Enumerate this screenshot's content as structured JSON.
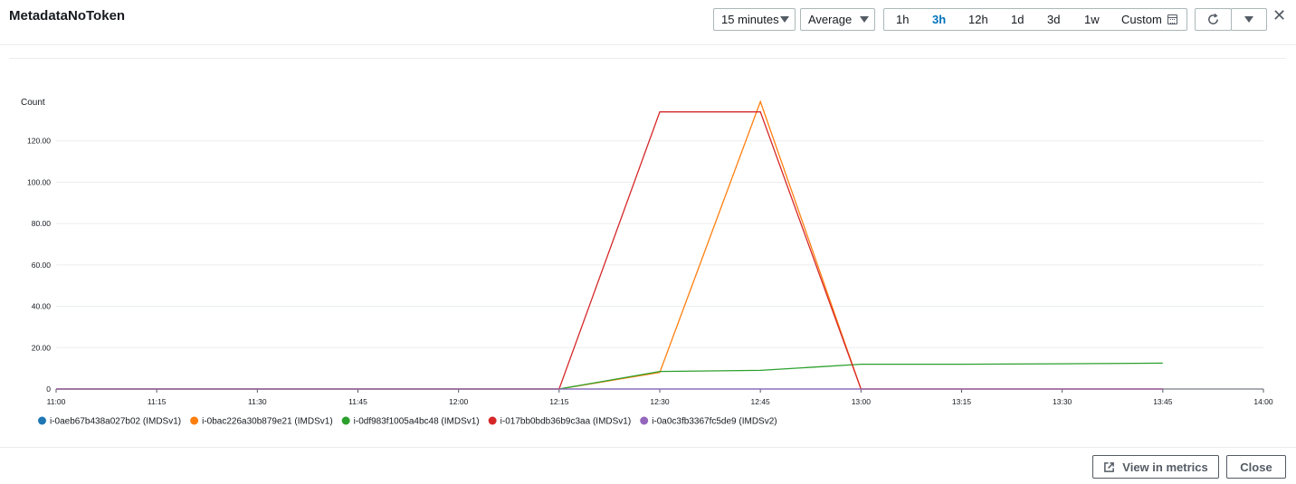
{
  "header": {
    "title": "MetadataNoToken",
    "period": "15 minutes",
    "statistic": "Average",
    "ranges": [
      "1h",
      "3h",
      "12h",
      "1d",
      "3d",
      "1w",
      "Custom"
    ],
    "active_range": "3h",
    "icons": {
      "period": "caret-down-icon",
      "refresh": "refresh-icon",
      "more": "caret-down-icon",
      "close": "close-icon",
      "calendar": "calendar-icon"
    }
  },
  "footer": {
    "view_label": "View in metrics",
    "close_label": "Close",
    "view_icon": "external-link-icon"
  },
  "chart_data": {
    "type": "line",
    "ylabel": "Count",
    "xlabel": "",
    "x": [
      "11:00",
      "11:15",
      "11:30",
      "11:45",
      "12:00",
      "12:15",
      "12:30",
      "12:45",
      "13:00",
      "13:15",
      "13:30",
      "13:45",
      "14:00"
    ],
    "yticks": [
      "0",
      "20.00",
      "40.00",
      "60.00",
      "80.00",
      "100.00",
      "120.00"
    ],
    "ylim": [
      0,
      140
    ],
    "grid": true,
    "legend": "bottom-left",
    "series": [
      {
        "name": "i-0aeb67b438a027b02 (IMDSv1)",
        "color": "#1f77b4",
        "values": [
          0,
          0,
          0,
          0,
          0,
          0,
          0,
          0,
          0,
          0,
          0,
          0,
          null
        ]
      },
      {
        "name": "i-0bac226a30b879e21 (IMDSv1)",
        "color": "#ff7f0e",
        "values": [
          0,
          0,
          0,
          0,
          0,
          0,
          8,
          139,
          0,
          0,
          0,
          0,
          null
        ]
      },
      {
        "name": "i-0df983f1005a4bc48 (IMDSv1)",
        "color": "#2ca02c",
        "values": [
          0,
          0,
          0,
          0,
          0,
          0,
          8.5,
          9,
          12,
          12,
          12.2,
          12.5,
          null
        ]
      },
      {
        "name": "i-017bb0bdb36b9c3aa (IMDSv1)",
        "color": "#d62728",
        "values": [
          0,
          0,
          0,
          0,
          0,
          0,
          134,
          134,
          0,
          0,
          0,
          0,
          null
        ]
      },
      {
        "name": "i-0a0c3fb3367fc5de9 (IMDSv2)",
        "color": "#9467bd",
        "values": [
          0,
          0,
          0,
          0,
          0,
          0,
          0,
          0,
          0,
          0,
          0,
          0,
          null
        ]
      }
    ]
  }
}
